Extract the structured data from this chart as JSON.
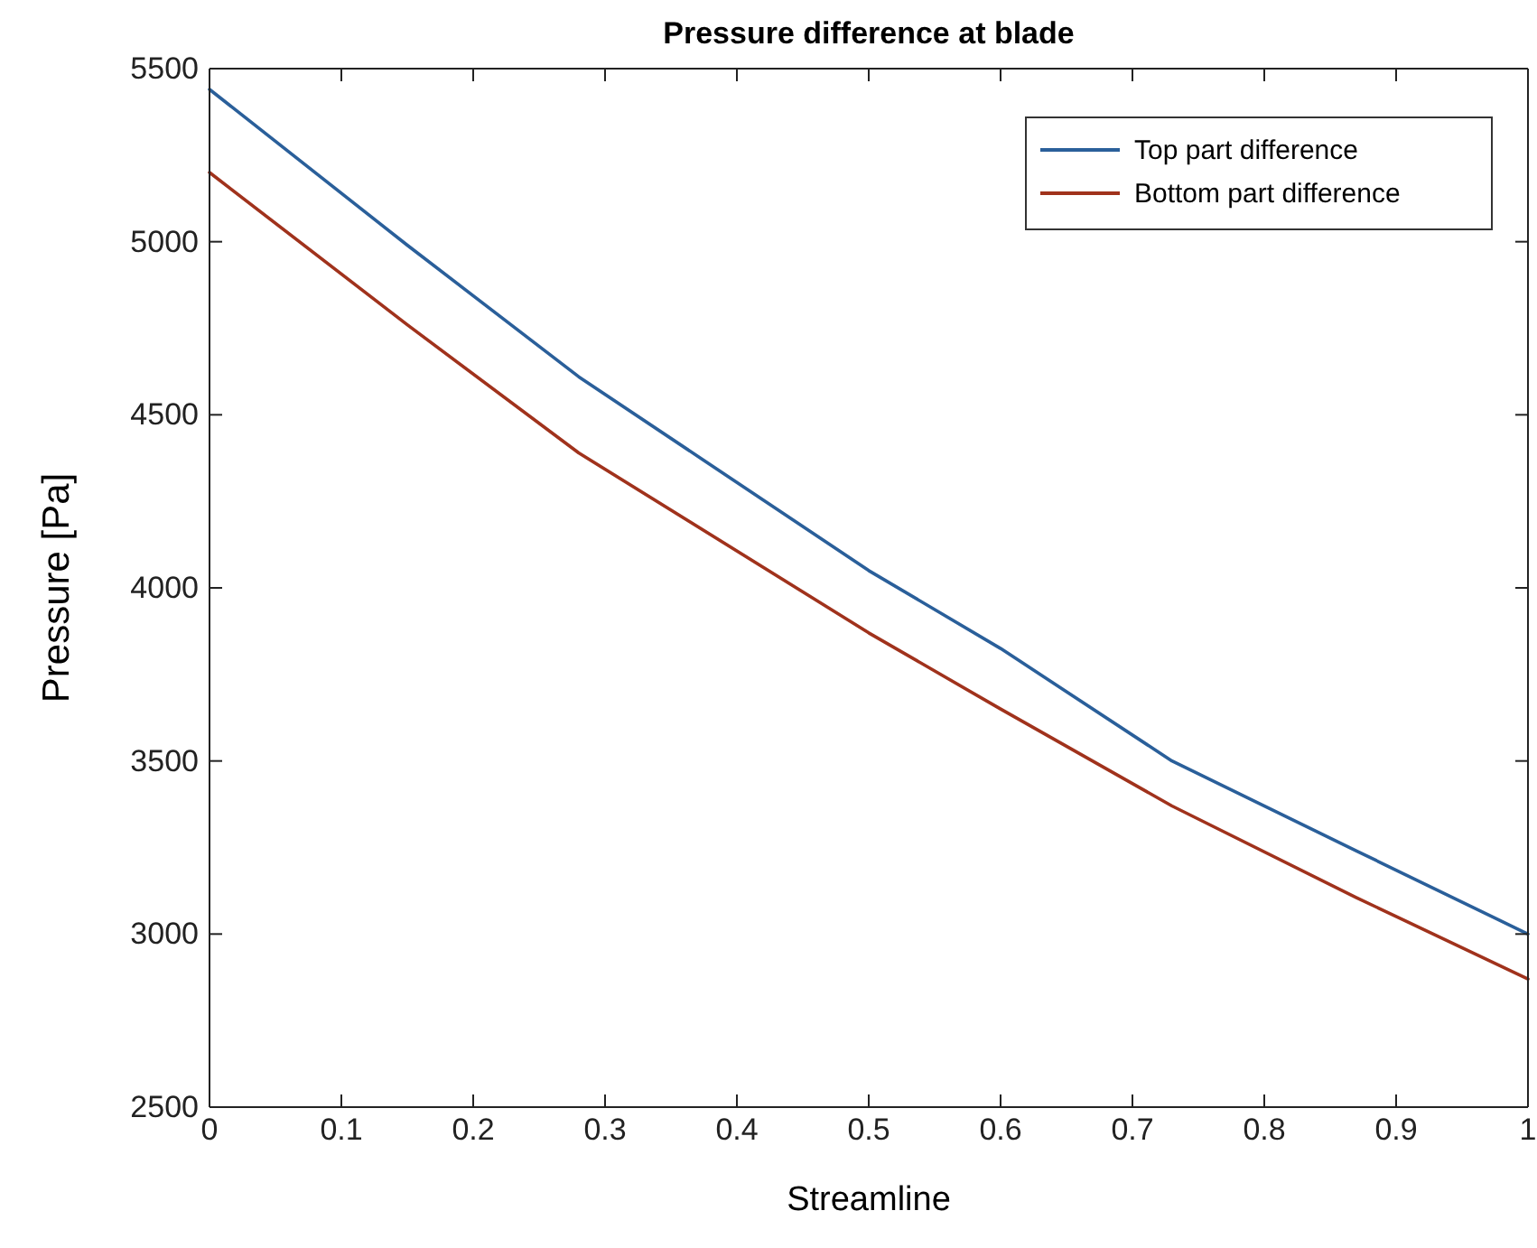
{
  "chart_data": {
    "type": "line",
    "title": "Pressure difference at blade",
    "xlabel": "Streamline",
    "ylabel": "Pressure [Pa]",
    "x": [
      0,
      0.15,
      0.28,
      0.5,
      0.6,
      0.73,
      0.87,
      1
    ],
    "series": [
      {
        "name": "Top part difference",
        "color": "#2a5f9a",
        "values": [
          5440,
          4990,
          4610,
          4050,
          3825,
          3500,
          3240,
          3000
        ]
      },
      {
        "name": "Bottom part difference",
        "color": "#a0321c",
        "values": [
          5200,
          4760,
          4390,
          3870,
          3650,
          3370,
          3105,
          2870
        ]
      }
    ],
    "xlim": [
      0,
      1
    ],
    "xticks": [
      0,
      0.1,
      0.2,
      0.3,
      0.4,
      0.5,
      0.6,
      0.7,
      0.8,
      0.9,
      1
    ],
    "ylim": [
      2500,
      5500
    ],
    "yticks": [
      2500,
      3000,
      3500,
      4000,
      4500,
      5000,
      5500
    ],
    "grid": false,
    "legend": "top right",
    "marker": "none",
    "line_style": "solid"
  }
}
